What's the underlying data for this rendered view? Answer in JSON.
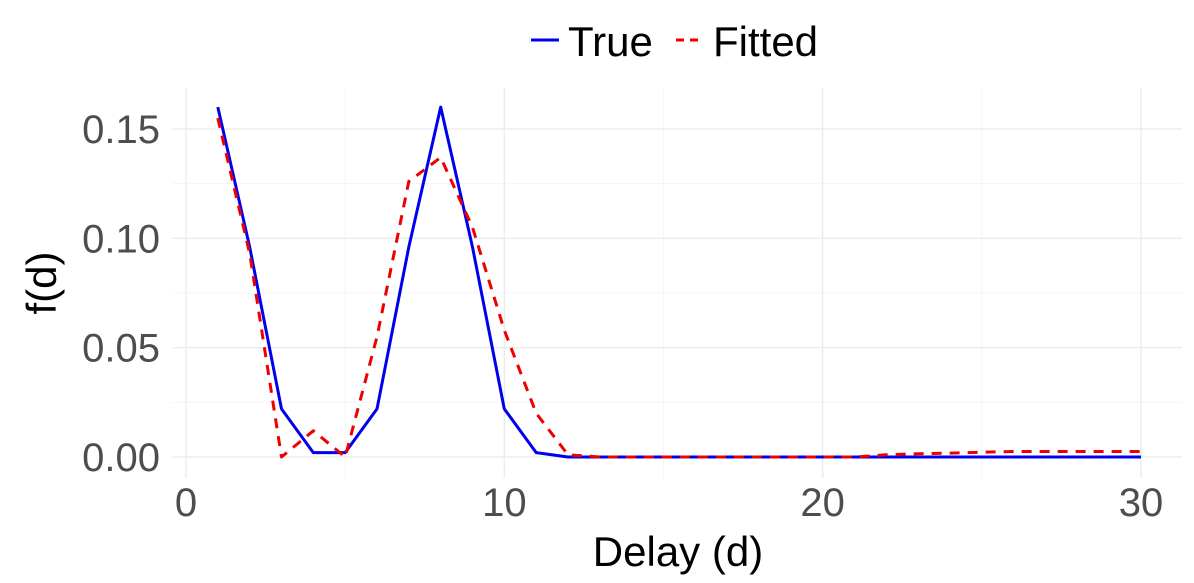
{
  "chart_data": {
    "type": "line",
    "title": "",
    "xlabel": "Delay (d)",
    "ylabel": "f(d)",
    "xlim": [
      0,
      30
    ],
    "ylim": [
      0,
      0.16
    ],
    "x_ticks": [
      0,
      10,
      20,
      30
    ],
    "x_tick_labels": [
      "0",
      "10",
      "20",
      "30"
    ],
    "y_ticks": [
      0,
      0.05,
      0.1,
      0.15
    ],
    "y_tick_labels": [
      "0.00",
      "0.05",
      "0.10",
      "0.15"
    ],
    "grid": true,
    "legend_position": "top",
    "series": [
      {
        "name": "True",
        "color": "#0000ee",
        "dash": "solid",
        "points": [
          [
            1,
            0.16
          ],
          [
            2,
            0.096
          ],
          [
            3,
            0.022
          ],
          [
            4,
            0.002
          ],
          [
            5,
            0.002
          ],
          [
            6,
            0.022
          ],
          [
            7,
            0.096
          ],
          [
            8,
            0.16
          ],
          [
            9,
            0.096
          ],
          [
            10,
            0.022
          ],
          [
            11,
            0.002
          ],
          [
            12,
            0.0
          ],
          [
            13,
            0.0
          ],
          [
            14,
            0.0
          ],
          [
            15,
            0.0
          ],
          [
            16,
            0.0
          ],
          [
            17,
            0.0
          ],
          [
            18,
            0.0
          ],
          [
            19,
            0.0
          ],
          [
            20,
            0.0
          ],
          [
            21,
            0.0
          ],
          [
            22,
            0.0
          ],
          [
            23,
            0.0
          ],
          [
            24,
            0.0
          ],
          [
            25,
            0.0
          ],
          [
            26,
            0.0
          ],
          [
            27,
            0.0
          ],
          [
            28,
            0.0
          ],
          [
            29,
            0.0
          ],
          [
            30,
            0.0
          ]
        ]
      },
      {
        "name": "Fitted",
        "color": "#ee0000",
        "dash": "dashed",
        "points": [
          [
            1,
            0.155
          ],
          [
            2,
            0.093
          ],
          [
            3,
            0.0
          ],
          [
            4,
            0.012
          ],
          [
            5,
            0.0
          ],
          [
            6,
            0.055
          ],
          [
            7,
            0.126
          ],
          [
            8,
            0.137
          ],
          [
            9,
            0.105
          ],
          [
            10,
            0.058
          ],
          [
            11,
            0.02
          ],
          [
            12,
            0.001
          ],
          [
            13,
            0.0
          ],
          [
            14,
            0.0
          ],
          [
            15,
            0.0
          ],
          [
            16,
            0.0
          ],
          [
            17,
            0.0
          ],
          [
            18,
            0.0
          ],
          [
            19,
            0.0
          ],
          [
            20,
            0.0
          ],
          [
            21,
            0.0
          ],
          [
            22,
            0.001
          ],
          [
            23,
            0.0015
          ],
          [
            24,
            0.0018
          ],
          [
            25,
            0.0022
          ],
          [
            26,
            0.0025
          ],
          [
            27,
            0.0025
          ],
          [
            28,
            0.0025
          ],
          [
            29,
            0.0025
          ],
          [
            30,
            0.0025
          ]
        ]
      }
    ]
  }
}
